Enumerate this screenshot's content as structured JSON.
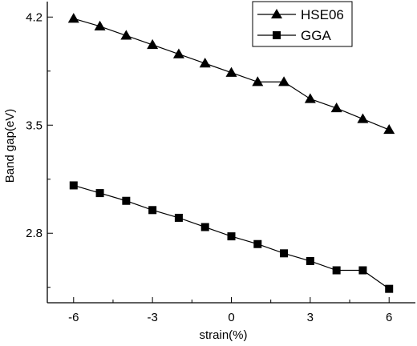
{
  "chart_data": {
    "type": "line",
    "xlabel": "strain(%)",
    "ylabel": "Band gap(eV)",
    "xlim": [
      -7,
      7
    ],
    "ylim": [
      2.35,
      4.3
    ],
    "xticks": [
      -6,
      -3,
      0,
      3,
      6
    ],
    "xtick_labels": [
      "-6",
      "-3",
      "0",
      "3",
      "6"
    ],
    "yticks": [
      2.8,
      3.5,
      4.2
    ],
    "ytick_labels": [
      "2.8",
      "3.5",
      "4.2"
    ],
    "x": [
      -6,
      -5,
      -4,
      -3,
      -2,
      -1,
      0,
      1,
      2,
      3,
      4,
      5,
      6
    ],
    "series": [
      {
        "name": "HSE06",
        "marker": "triangle",
        "values": [
          4.19,
          4.14,
          4.08,
          4.02,
          3.96,
          3.9,
          3.84,
          3.78,
          3.78,
          3.67,
          3.61,
          3.54,
          3.47
        ]
      },
      {
        "name": "GGA",
        "marker": "square",
        "values": [
          3.11,
          3.06,
          3.01,
          2.95,
          2.9,
          2.84,
          2.78,
          2.73,
          2.67,
          2.62,
          2.56,
          2.56,
          2.44
        ]
      }
    ],
    "legend_position": "top-right",
    "grid": false,
    "color": "#000000"
  }
}
